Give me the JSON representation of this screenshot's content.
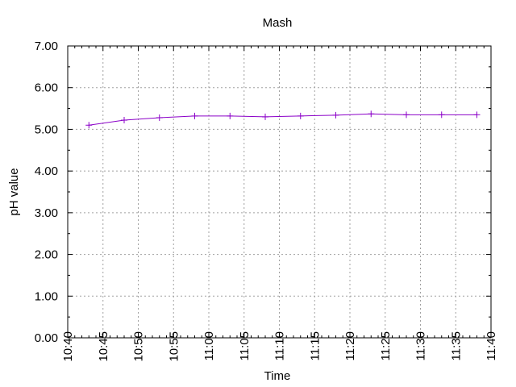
{
  "chart_data": {
    "type": "line",
    "title": "Mash",
    "xlabel": "Time",
    "ylabel": "pH value",
    "ylim": [
      0,
      7
    ],
    "xlim": [
      "10:40",
      "11:40"
    ],
    "grid": true,
    "y_tick_labels": [
      "0.00",
      "1.00",
      "2.00",
      "3.00",
      "4.00",
      "5.00",
      "6.00",
      "7.00"
    ],
    "x_tick_labels": [
      "10:40",
      "10:45",
      "10:50",
      "10:55",
      "11:00",
      "11:05",
      "11:10",
      "11:15",
      "11:20",
      "11:25",
      "11:30",
      "11:35",
      "11:40"
    ],
    "series": [
      {
        "color": "#8b00c8",
        "marker": "plus",
        "x": [
          "10:43",
          "10:48",
          "10:53",
          "10:58",
          "11:03",
          "11:08",
          "11:13",
          "11:18",
          "11:23",
          "11:28",
          "11:33",
          "11:38"
        ],
        "values": [
          5.1,
          5.22,
          5.28,
          5.32,
          5.32,
          5.3,
          5.32,
          5.34,
          5.37,
          5.35,
          5.35,
          5.35
        ]
      }
    ]
  }
}
